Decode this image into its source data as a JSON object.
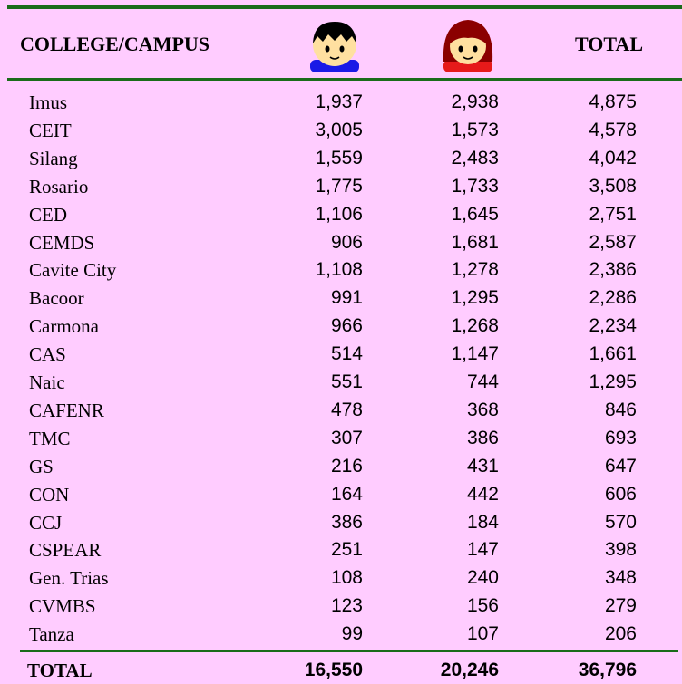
{
  "table": {
    "header": [
      "COLLEGE/CAMPUS",
      "TOTAL"
    ],
    "rows": [
      [
        "Imus",
        "1,937",
        "2,938",
        "4,875"
      ],
      [
        "CEIT",
        "3,005",
        "1,573",
        "4,578"
      ],
      [
        "Silang",
        "1,559",
        "2,483",
        "4,042"
      ],
      [
        "Rosario",
        "1,775",
        "1,733",
        "3,508"
      ],
      [
        "CED",
        "1,106",
        "1,645",
        "2,751"
      ],
      [
        "CEMDS",
        "906",
        "1,681",
        "2,587"
      ],
      [
        "Cavite City",
        "1,108",
        "1,278",
        "2,386"
      ],
      [
        "Bacoor",
        "991",
        "1,295",
        "2,286"
      ],
      [
        "Carmona",
        "966",
        "1,268",
        "2,234"
      ],
      [
        "CAS",
        "514",
        "1,147",
        "1,661"
      ],
      [
        "Naic",
        "551",
        "744",
        "1,295"
      ],
      [
        "CAFENR",
        "478",
        "368",
        "846"
      ],
      [
        "TMC",
        "307",
        "386",
        "693"
      ],
      [
        "GS",
        "216",
        "431",
        "647"
      ],
      [
        "CON",
        "164",
        "442",
        "606"
      ],
      [
        "CCJ",
        "386",
        "184",
        "570"
      ],
      [
        "CSPEAR",
        "251",
        "147",
        "398"
      ],
      [
        "Gen. Trias",
        "108",
        "240",
        "348"
      ],
      [
        "CVMBS",
        "123",
        "156",
        "279"
      ],
      [
        "Tanza",
        "99",
        "107",
        "206"
      ]
    ],
    "total": [
      "TOTAL",
      "16,550",
      "20,246",
      "36,796"
    ]
  }
}
